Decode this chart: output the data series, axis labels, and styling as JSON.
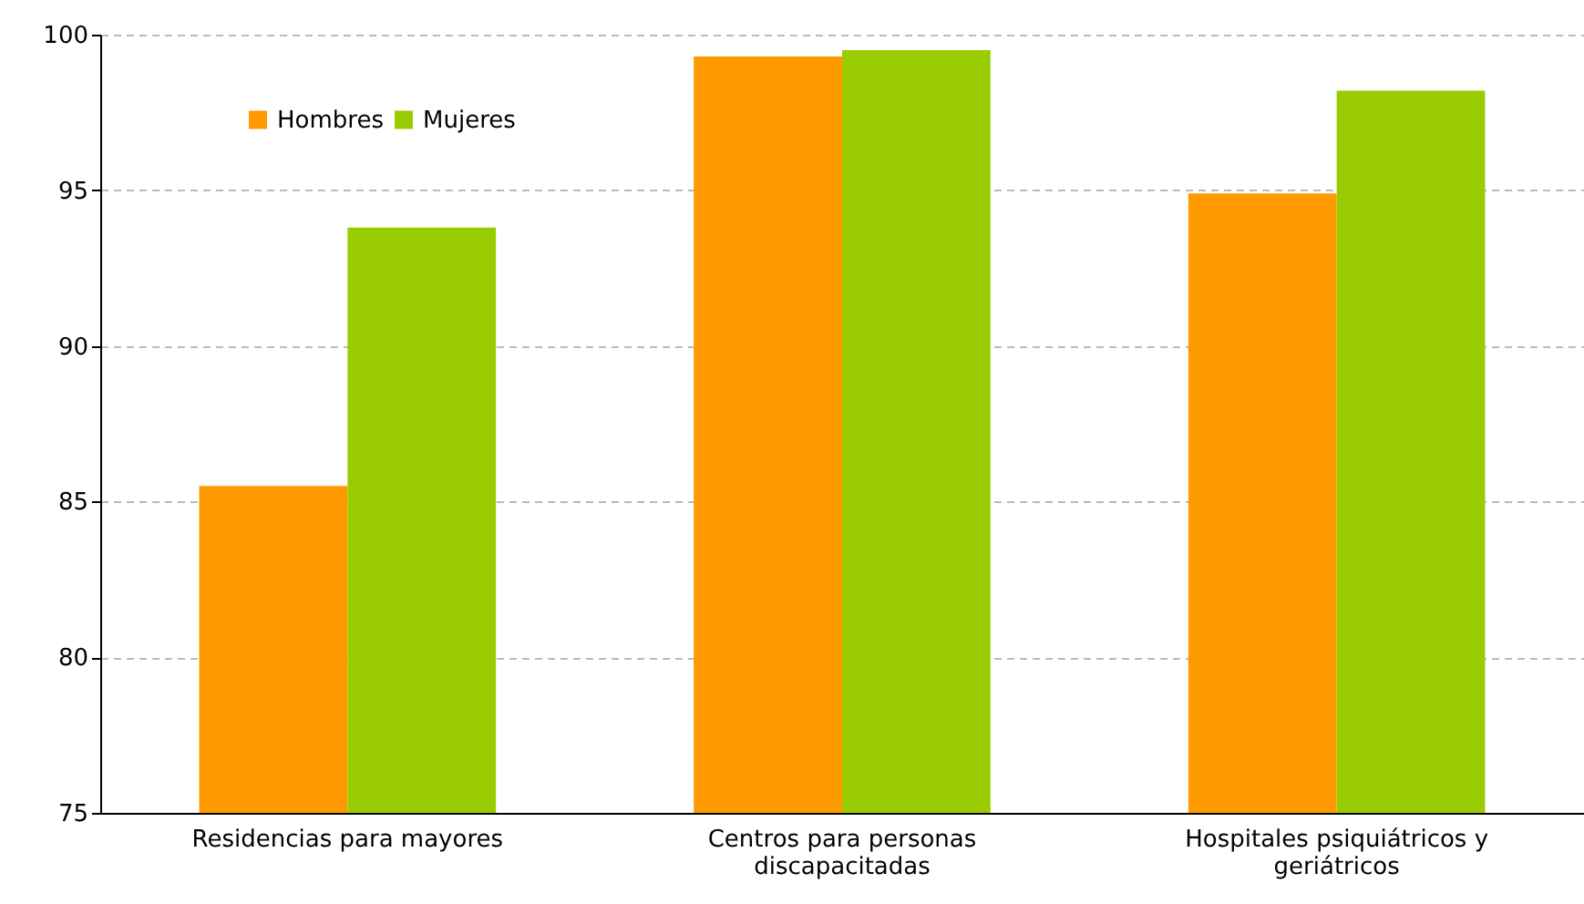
{
  "chart_data": {
    "type": "bar",
    "categories": [
      "Residencias para mayores",
      "Centros para personas discapacitadas",
      "Hospitales psiquiátricos y geriátricos"
    ],
    "series": [
      {
        "name": "Hombres",
        "color": "#ff9900",
        "values": [
          85.5,
          99.3,
          94.9
        ]
      },
      {
        "name": "Mujeres",
        "color": "#99cc00",
        "values": [
          93.8,
          99.5,
          98.2
        ]
      }
    ],
    "ylim": [
      75,
      100
    ],
    "yticks": [
      75,
      80,
      85,
      90,
      95,
      100
    ],
    "grid": "y",
    "legend": "top left"
  }
}
